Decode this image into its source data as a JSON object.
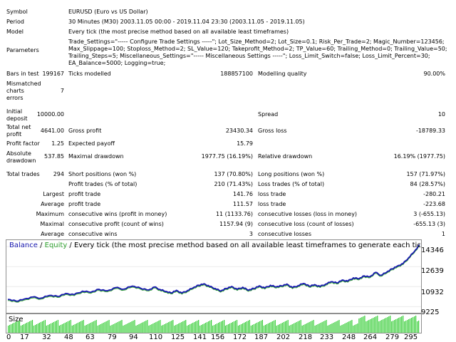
{
  "report": {
    "symbol_label": "Symbol",
    "symbol": "EURUSD (Euro vs US Dollar)",
    "period_label": "Period",
    "period": "30 Minutes (M30) 2003.11.05 00:00 - 2019.11.04 23:30 (2003.11.05 - 2019.11.05)",
    "model_label": "Model",
    "model": "Every tick (the most precise method based on all available least timeframes)",
    "params_label": "Parameters",
    "params_lines": [
      "Trade_Settings=\"----- Configure Trade Settings -----\"; Lot_Size_Method=2; Lot_Size=0.1; Risk_Per_Trade=2; Magic_Number=123456;",
      "Max_Slippage=100; Stoploss_Method=2; SL_Value=120; Takeprofit_Method=2; TP_Value=60; Trailing_Method=0; Trailing_Value=50;",
      "Trailing_Steps=5; Miscellaneous_Settings=\"----- Miscellaneous Settings -----\"; Loss_Limit_Switch=false; Loss_Limit_Percent=30;",
      "EA_Balance=5000; Logging=true;"
    ],
    "bars_label": "Bars in test",
    "bars": "199167",
    "ticks_label": "Ticks modelled",
    "ticks": "188857100",
    "quality_label": "Modelling quality",
    "quality": "90.00%",
    "mismatch_label_1": "Mismatched",
    "mismatch_label_2": "charts",
    "mismatch_label_3": "errors",
    "mismatch": "7",
    "deposit_label_1": "Initial",
    "deposit_label_2": "deposit",
    "deposit": "10000.00",
    "spread_label": "Spread",
    "spread": "10",
    "netprofit_label_1": "Total net",
    "netprofit_label_2": "profit",
    "netprofit": "4641.00",
    "grossprofit_label": "Gross profit",
    "grossprofit": "23430.34",
    "grossloss_label": "Gross loss",
    "grossloss": "-18789.33",
    "pf_label": "Profit factor",
    "pf": "1.25",
    "ep_label": "Expected payoff",
    "ep": "15.79",
    "absdd_label_1": "Absolute",
    "absdd_label_2": "drawdown",
    "absdd": "537.85",
    "maxdd_label": "Maximal drawdown",
    "maxdd": "1977.75 (16.19%)",
    "reldd_label": "Relative drawdown",
    "reldd": "16.19% (1977.75)",
    "trades_label": "Total trades",
    "trades": "294",
    "short_label": "Short positions (won %)",
    "short": "137 (70.80%)",
    "long_label": "Long positions (won %)",
    "long": "157 (71.97%)",
    "ptrades_label": "Profit trades (% of total)",
    "ptrades": "210 (71.43%)",
    "ltrades_label": "Loss trades (% of total)",
    "ltrades": "84 (28.57%)",
    "largest": "Largest",
    "average": "Average",
    "maximum": "Maximum",
    "maximal": "Maximal",
    "profit_trade": "profit trade",
    "loss_trade": "loss trade",
    "largest_profit": "141.76",
    "largest_loss": "-280.21",
    "avg_profit": "111.57",
    "avg_loss": "-223.68",
    "cons_wins_money_label": "consecutive wins (profit in money)",
    "cons_wins_money": "11 (1133.76)",
    "cons_losses_money_label": "consecutive losses (loss in money)",
    "cons_losses_money": "3 (-655.13)",
    "cons_profit_count_label": "consecutive profit (count of wins)",
    "cons_profit_count": "1157.94 (9)",
    "cons_loss_count_label": "consecutive loss (count of losses)",
    "cons_loss_count": "-655.13 (3)",
    "avg_cons_wins_label": "consecutive wins",
    "avg_cons_wins": "3",
    "avg_cons_losses_label": "consecutive losses",
    "avg_cons_losses": "1"
  },
  "chart_data": {
    "type": "line",
    "legend": {
      "balance": "Balance",
      "sep": " / ",
      "equity": "Equity",
      "rest": " / Every tick (the most precise method based on all available least timeframes to generate each tick) / 90.00%"
    },
    "colors": {
      "balance": "#1818b0",
      "equity": "#2ea02e",
      "size": "#33cc33"
    },
    "y_ticks": [
      "14346",
      "12639",
      "10932",
      "9225"
    ],
    "x_ticks": [
      "0",
      "17",
      "32",
      "48",
      "63",
      "79",
      "94",
      "110",
      "125",
      "141",
      "156",
      "172",
      "187",
      "202",
      "218",
      "233",
      "248",
      "264",
      "279",
      "295"
    ],
    "size_label": "Size",
    "ylim": [
      8700,
      14900
    ],
    "xlim": [
      0,
      298
    ],
    "balance": [
      [
        0,
        9840
      ],
      [
        6,
        9700
      ],
      [
        12,
        9880
      ],
      [
        18,
        10050
      ],
      [
        24,
        9950
      ],
      [
        30,
        10180
      ],
      [
        36,
        10100
      ],
      [
        42,
        10350
      ],
      [
        48,
        10250
      ],
      [
        54,
        10550
      ],
      [
        60,
        10450
      ],
      [
        66,
        10700
      ],
      [
        72,
        10580
      ],
      [
        78,
        10850
      ],
      [
        84,
        10720
      ],
      [
        90,
        10980
      ],
      [
        96,
        10800
      ],
      [
        102,
        10650
      ],
      [
        106,
        10900
      ],
      [
        110,
        10700
      ],
      [
        114,
        10520
      ],
      [
        118,
        10400
      ],
      [
        122,
        10620
      ],
      [
        126,
        10380
      ],
      [
        130,
        10600
      ],
      [
        134,
        10820
      ],
      [
        138,
        11050
      ],
      [
        142,
        11180
      ],
      [
        146,
        10950
      ],
      [
        150,
        10780
      ],
      [
        154,
        10550
      ],
      [
        158,
        10780
      ],
      [
        162,
        10950
      ],
      [
        166,
        10700
      ],
      [
        170,
        10880
      ],
      [
        174,
        10620
      ],
      [
        178,
        10780
      ],
      [
        182,
        11000
      ],
      [
        186,
        10820
      ],
      [
        190,
        11050
      ],
      [
        194,
        10900
      ],
      [
        198,
        11000
      ],
      [
        202,
        11150
      ],
      [
        206,
        10850
      ],
      [
        210,
        11020
      ],
      [
        214,
        11200
      ],
      [
        218,
        10980
      ],
      [
        222,
        11100
      ],
      [
        226,
        10950
      ],
      [
        230,
        11150
      ],
      [
        234,
        11350
      ],
      [
        238,
        11250
      ],
      [
        242,
        11500
      ],
      [
        246,
        11400
      ],
      [
        250,
        11680
      ],
      [
        254,
        11600
      ],
      [
        258,
        11850
      ],
      [
        262,
        11780
      ],
      [
        266,
        12150
      ],
      [
        270,
        11900
      ],
      [
        274,
        12150
      ],
      [
        278,
        12450
      ],
      [
        282,
        12700
      ],
      [
        286,
        12900
      ],
      [
        290,
        13400
      ],
      [
        294,
        13900
      ],
      [
        298,
        14500
      ]
    ],
    "size_bars": 290
  }
}
